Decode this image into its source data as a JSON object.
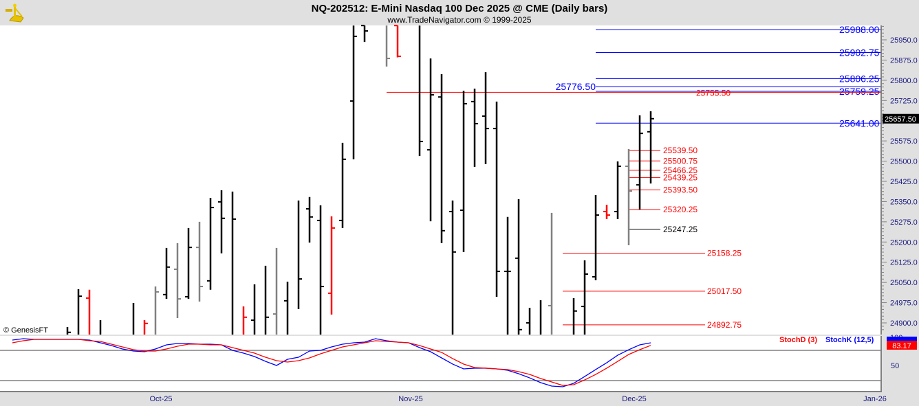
{
  "header": {
    "title": "NQ-202512:  E-Mini Nasdaq 100 Dec 2025 @ CME  (Daily bars)",
    "subtitle": "www.TradeNavigator.com © 1999-2025",
    "logo_icon": "sextant-icon",
    "copyright": "© GenesisFT"
  },
  "chart_data": [
    {
      "type": "ohlc-bar",
      "ylim": [
        24855,
        26003
      ],
      "y_ticks": [
        "25950.0",
        "25875.0",
        "25800.0",
        "25725.0",
        "25575.0",
        "25500.0",
        "25425.0",
        "25350.0",
        "25275.0",
        "25200.0",
        "25125.0",
        "25050.0",
        "24975.0",
        "24900.0"
      ],
      "y_tick_values": [
        25950,
        25875,
        25800,
        25725,
        25575,
        25500,
        25425,
        25350,
        25275,
        25200,
        25125,
        25050,
        24975,
        24900
      ],
      "last_price": "25657.50",
      "last_price_value": 25657.5,
      "bar_fields": [
        "high",
        "low",
        "open",
        "close",
        "color"
      ],
      "bar_colors": {
        "b": "#000000",
        "r": "#ff0000",
        "g": "#808080"
      },
      "bars": [
        [
          24885,
          24800,
          null,
          24865,
          "b"
        ],
        [
          25025,
          24800,
          null,
          24999,
          "b"
        ],
        [
          25023,
          24800,
          24992,
          null,
          "r"
        ],
        [
          24910,
          24800,
          null,
          null,
          "b"
        ],
        null,
        null,
        [
          24974,
          24800,
          null,
          null,
          "b"
        ],
        [
          24910,
          24800,
          null,
          24898,
          "r"
        ],
        [
          25035,
          24800,
          null,
          25015,
          "g"
        ],
        [
          25178,
          24989,
          25005,
          25107,
          "b"
        ],
        [
          25196,
          24918,
          25099,
          24989,
          "g"
        ],
        [
          25252,
          24989,
          24997,
          25180,
          "b"
        ],
        [
          25275,
          24979,
          25180,
          25035,
          "g"
        ],
        [
          25364,
          25023,
          25056,
          25328,
          "b"
        ],
        [
          25392,
          25158,
          25349,
          25288,
          "b"
        ],
        [
          25387,
          24800,
          null,
          25285,
          "b"
        ],
        [
          24961,
          24800,
          null,
          24921,
          "r"
        ],
        [
          25043,
          24800,
          24910,
          null,
          "b"
        ],
        [
          25112,
          24800,
          null,
          24921,
          "b"
        ],
        [
          25178,
          24800,
          24933,
          null,
          "g"
        ],
        [
          25053,
          24800,
          24982,
          null,
          "b"
        ],
        [
          25354,
          24951,
          null,
          25063,
          "b"
        ],
        [
          25367,
          25198,
          25323,
          25293,
          "b"
        ],
        [
          25336,
          24800,
          25280,
          25035,
          "b"
        ],
        [
          25295,
          24931,
          25010,
          25252,
          "r"
        ],
        [
          25568,
          25252,
          25280,
          25507,
          "b"
        ],
        [
          26003,
          25507,
          25723,
          25963,
          "b"
        ],
        [
          26003,
          25942,
          26003,
          25983,
          "b"
        ],
        null,
        [
          26003,
          25851,
          null,
          25881,
          "g"
        ],
        [
          26003,
          25885,
          26003,
          25889,
          "r"
        ],
        null,
        [
          26003,
          25519,
          null,
          25573,
          "b"
        ],
        [
          25881,
          25277,
          25542,
          25746,
          "b"
        ],
        [
          25823,
          25196,
          25738,
          25242,
          "b"
        ],
        [
          25354,
          24800,
          25313,
          25163,
          "b"
        ],
        [
          25761,
          25163,
          25318,
          25713,
          "b"
        ],
        [
          25769,
          25479,
          25721,
          25639,
          "b"
        ],
        [
          25830,
          25489,
          25667,
          25621,
          "b"
        ],
        [
          25721,
          24997,
          25621,
          25091,
          "b"
        ],
        [
          25293,
          24800,
          25091,
          25091,
          "b"
        ],
        [
          25359,
          24800,
          25140,
          24875,
          "b"
        ],
        [
          24956,
          24800,
          24900,
          null,
          "b"
        ],
        [
          24984,
          24800,
          null,
          null,
          "b"
        ],
        [
          25308,
          24800,
          24964,
          null,
          "g"
        ],
        null,
        [
          24992,
          24800,
          null,
          24944,
          "b"
        ],
        [
          25132,
          24800,
          24961,
          25081,
          "b"
        ],
        [
          25374,
          25058,
          25071,
          25300,
          "b"
        ],
        [
          25338,
          25285,
          25313,
          25300,
          "r"
        ],
        [
          25499,
          25285,
          25313,
          25481,
          "b"
        ],
        [
          25545,
          25188,
          25481,
          25389,
          "g"
        ],
        [
          25670,
          25321,
          25412,
          25603,
          "b"
        ],
        [
          25685,
          25417,
          25609,
          25657.5,
          "b"
        ]
      ],
      "levels_blue": [
        {
          "label": "25988.00",
          "value": 25988.0
        },
        {
          "label": "25902.75",
          "value": 25902.75
        },
        {
          "label": "25806.25",
          "value": 25806.25
        },
        {
          "label": "25759.25",
          "value": 25759.25
        },
        {
          "label": "25641.00",
          "value": 25641.0
        }
      ],
      "level_blue_left": {
        "label": "25776.50",
        "value": 25776.5
      },
      "level_red_long": {
        "label": "25755.50",
        "value": 25755.5
      },
      "levels_short": [
        {
          "label": "25539.50",
          "value": 25539.5,
          "color": "#ff0000"
        },
        {
          "label": "25500.75",
          "value": 25500.75,
          "color": "#ff0000"
        },
        {
          "label": "25466.25",
          "value": 25466.25,
          "color": "#ff0000"
        },
        {
          "label": "25439.25",
          "value": 25439.25,
          "color": "#ff0000"
        },
        {
          "label": "25393.50",
          "value": 25393.5,
          "color": "#ff0000"
        },
        {
          "label": "25320.25",
          "value": 25320.25,
          "color": "#ff0000"
        },
        {
          "label": "25247.25",
          "value": 25247.25,
          "color": "#000000"
        }
      ],
      "levels_mid": [
        {
          "label": "25158.25",
          "value": 25158.25
        },
        {
          "label": "25017.50",
          "value": 25017.5
        },
        {
          "label": "24892.75",
          "value": 24892.75
        }
      ],
      "x_labels": [
        "Oct-25",
        "Nov-25",
        "Dec-25",
        "Jan-26"
      ]
    },
    {
      "type": "line",
      "ylim": [
        0,
        100
      ],
      "y_ticks": [
        "100",
        "50"
      ],
      "guide_levels": [
        75,
        25
      ],
      "series": [
        {
          "name": "StochK (12,5)",
          "color": "#0000ff",
          "values": [
            92,
            94.3,
            93.2,
            93.2,
            93.2,
            93.2,
            93.2,
            92,
            87.5,
            83,
            77.3,
            73.9,
            72.7,
            77.3,
            84.1,
            86.4,
            86.4,
            85.2,
            85.2,
            84.1,
            75,
            70.5,
            64.8,
            56.8,
            50,
            60.2,
            63.6,
            73.9,
            75,
            80.7,
            85.2,
            87.5,
            88.6,
            94.3,
            90.9,
            88.6,
            87.5,
            79.5,
            72.7,
            62.5,
            52.3,
            44.3,
            45.5,
            45.5,
            44.3,
            42,
            36.4,
            29.5,
            21.6,
            15.9,
            14.8,
            20.5,
            31.8,
            43.2,
            54.5,
            67,
            76.1,
            84.1,
            87.5
          ]
        },
        {
          "name": "StochD (3)",
          "color": "#ff0000",
          "last": "83.17",
          "values": [
            87.5,
            90.9,
            93.2,
            93.2,
            93.2,
            93.2,
            93.2,
            90.9,
            89.8,
            85.2,
            80.7,
            76.1,
            73.9,
            73.9,
            77.3,
            81.8,
            85.2,
            85.2,
            84.1,
            84.1,
            79.5,
            75,
            70.5,
            63.6,
            58,
            55.7,
            58,
            62.5,
            69.3,
            75,
            80.7,
            84.1,
            87.5,
            90.9,
            89.8,
            88.6,
            87.5,
            83,
            77.3,
            71.6,
            61.4,
            52.3,
            46.6,
            45.5,
            44.3,
            43.2,
            39.8,
            35.2,
            28.4,
            22.7,
            17,
            18.2,
            26.1,
            35.2,
            45.5,
            56.8,
            68.2,
            76.1,
            83.17
          ]
        }
      ]
    }
  ]
}
